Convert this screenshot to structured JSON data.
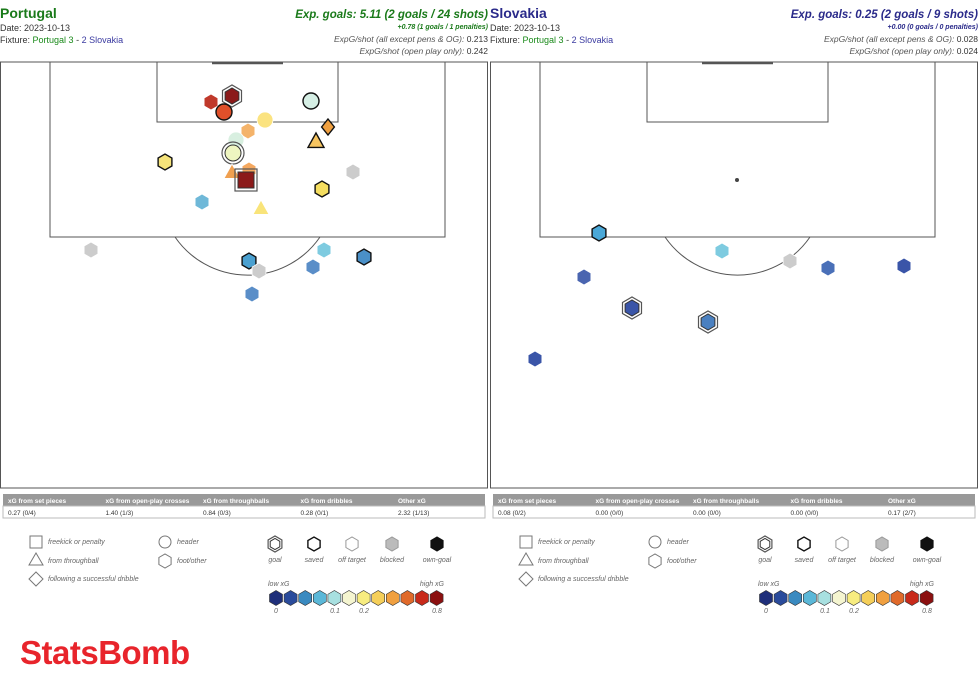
{
  "panels": [
    {
      "team": "Portugal",
      "date": "Date: 2023-10-13",
      "fixture_label": "Fixture:",
      "fixture_home": "Portugal 3",
      "fixture_sep": "-",
      "fixture_away": "2 Slovakia",
      "exp_goals": "Exp. goals: 5.11 (2 goals / 24 shots)",
      "penalties": "+0.78 (1 goals / 1 penalties)",
      "xg_shot_all_label": "ExpG/shot (all except pens & OG):",
      "xg_shot_all": "0.213",
      "xg_shot_open_label": "ExpG/shot (open play only):",
      "xg_shot_open": "0.242",
      "table": {
        "headers": [
          "xG from set pieces",
          "xG from open-play crosses",
          "xG from throughballs",
          "xG from dribbles",
          "Other xG"
        ],
        "values": [
          "0.27 (0/4)",
          "1.40 (1/3)",
          "0.84 (0/3)",
          "0.28 (0/1)",
          "2.32 (1/13)"
        ]
      },
      "legend": {
        "freekick": "freekick or penalty",
        "throughball": "from throughball",
        "dribble": "following a successful dribble",
        "header": "header",
        "foot": "foot/other",
        "goal": "goal",
        "saved": "saved",
        "off_target": "off target",
        "blocked": "blocked",
        "own_goal": "own-goal",
        "low": "low xG",
        "high": "high xG",
        "scale": [
          "0",
          "0.1",
          "0.2",
          "0.8"
        ]
      }
    },
    {
      "team": "Slovakia",
      "date": "Date: 2023-10-13",
      "fixture_label": "Fixture:",
      "fixture_home": "Portugal 3",
      "fixture_sep": "-",
      "fixture_away": "2 Slovakia",
      "exp_goals": "Exp. goals: 0.25 (2 goals / 9 shots)",
      "penalties": "+0.00 (0 goals / 0 penalties)",
      "xg_shot_all_label": "ExpG/shot (all except pens & OG):",
      "xg_shot_all": "0.028",
      "xg_shot_open_label": "ExpG/shot (open play only):",
      "xg_shot_open": "0.024",
      "table": {
        "headers": [
          "xG from set pieces",
          "xG from open-play crosses",
          "xG from throughballs",
          "xG from dribbles",
          "Other xG"
        ],
        "values": [
          "0.08 (0/2)",
          "0.00 (0/0)",
          "0.00 (0/0)",
          "0.00 (0/0)",
          "0.17 (2/7)"
        ]
      },
      "legend": {
        "freekick": "freekick or penalty",
        "throughball": "from throughball",
        "dribble": "following a successful dribble",
        "header": "header",
        "foot": "foot/other",
        "goal": "goal",
        "saved": "saved",
        "off_target": "off target",
        "blocked": "blocked",
        "own_goal": "own-goal",
        "low": "low xG",
        "high": "high xG",
        "scale": [
          "0",
          "0.1",
          "0.2",
          "0.8"
        ]
      }
    }
  ],
  "logo": "StatsBomb"
}
